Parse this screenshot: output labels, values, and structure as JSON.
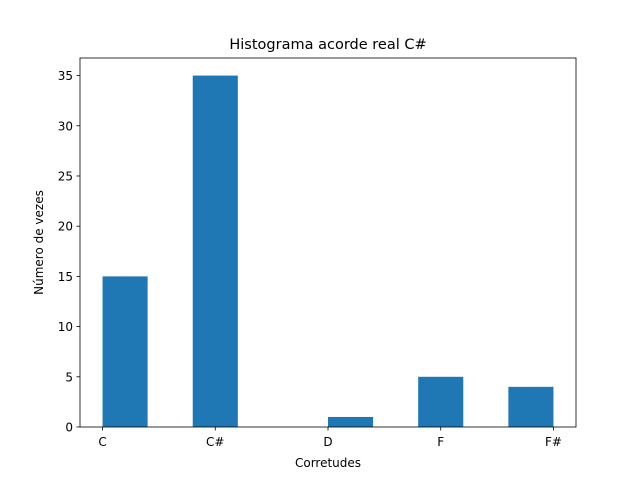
{
  "chart_data": {
    "type": "bar",
    "title": "Histograma acorde real C#",
    "xlabel": "Corretudes",
    "ylabel": "Número de vezes",
    "x_ticks": [
      "C",
      "C#",
      "D",
      "F",
      "F#"
    ],
    "series": [
      {
        "values": [
          {
            "x": 0.2,
            "y": 15
          },
          {
            "x": 1.0,
            "y": 35
          },
          {
            "x": 2.2,
            "y": 1
          },
          {
            "x": 3.0,
            "y": 5
          },
          {
            "x": 3.8,
            "y": 4
          }
        ]
      }
    ],
    "bar_width": 0.4,
    "xlim": [
      -0.2,
      4.2
    ],
    "ylim": [
      0,
      36.75
    ],
    "yticks": [
      0,
      5,
      10,
      15,
      20,
      25,
      30,
      35
    ],
    "grid": false,
    "bar_color": "#1f77b4"
  }
}
